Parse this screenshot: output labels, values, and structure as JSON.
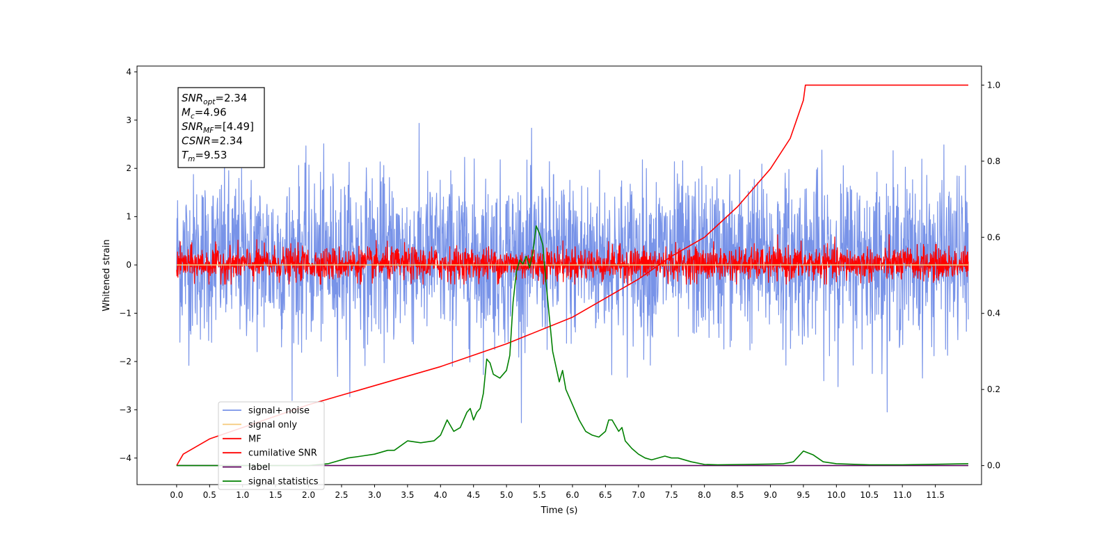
{
  "chart_data": {
    "type": "line",
    "title": "",
    "xlabel": "Time (s)",
    "ylabel": "Whitened strain",
    "xlim": [
      -0.6,
      12.2
    ],
    "ylim": [
      -4.55,
      4.12
    ],
    "y2lim": [
      -0.05,
      1.05
    ],
    "x_ticks": [
      0.0,
      0.5,
      1.0,
      1.5,
      2.0,
      2.5,
      3.0,
      3.5,
      4.0,
      4.5,
      5.0,
      5.5,
      6.0,
      6.5,
      7.0,
      7.5,
      8.0,
      8.5,
      9.0,
      9.5,
      10.0,
      10.5,
      11.0,
      11.5
    ],
    "x_tick_labels": [
      "0.0",
      "0.5",
      "1.0",
      "1.5",
      "2.0",
      "2.5",
      "3.0",
      "3.5",
      "4.0",
      "4.5",
      "5.0",
      "5.5",
      "6.0",
      "6.5",
      "7.0",
      "7.5",
      "8.0",
      "8.5",
      "9.0",
      "9.5",
      "10.0",
      "10.5",
      "11.0",
      "11.5"
    ],
    "y_ticks": [
      -4,
      -3,
      -2,
      -1,
      0,
      1,
      2,
      3,
      4
    ],
    "y_tick_labels": [
      "−4",
      "−3",
      "−2",
      "−1",
      "0",
      "1",
      "2",
      "3",
      "4"
    ],
    "y2_ticks": [
      0.0,
      0.2,
      0.4,
      0.6,
      0.8,
      1.0
    ],
    "y2_tick_labels": [
      "0.0",
      "0.2",
      "0.4",
      "0.6",
      "0.8",
      "1.0"
    ],
    "grid": false,
    "legend_position": "lower-left",
    "series": [
      {
        "name": "signal+ noise",
        "color": "#7893e8",
        "axis": "left",
        "kind": "noise",
        "x_range": [
          0,
          12.0
        ],
        "center": 0.15,
        "sigma": 0.85,
        "peak_max": 3.75,
        "peak_min": -3.85
      },
      {
        "name": "signal only",
        "color": "#f5c97a",
        "axis": "left",
        "kind": "flat",
        "x_range": [
          0,
          12.0
        ],
        "value": 0
      },
      {
        "name": "MF",
        "color": "#ff0000",
        "axis": "left",
        "kind": "noise",
        "x_range": [
          0,
          12.0
        ],
        "center": 0.02,
        "sigma": 0.17,
        "peak_max": 1.0,
        "peak_min": -0.4
      },
      {
        "name": "cumilative SNR",
        "color": "#ff0000",
        "axis": "right",
        "x": [
          0.0,
          0.1,
          0.5,
          1.0,
          2.0,
          3.0,
          4.0,
          5.0,
          6.0,
          7.0,
          7.5,
          8.0,
          8.5,
          9.0,
          9.3,
          9.5,
          9.53,
          12.0
        ],
        "y": [
          0.0,
          0.03,
          0.07,
          0.1,
          0.16,
          0.21,
          0.26,
          0.32,
          0.39,
          0.49,
          0.55,
          0.6,
          0.68,
          0.78,
          0.86,
          0.96,
          1.0,
          1.0
        ]
      },
      {
        "name": "label",
        "color": "#5c005c",
        "axis": "right",
        "x": [
          0.0,
          12.0
        ],
        "y": [
          0.0,
          0.0
        ]
      },
      {
        "name": "signal statistics",
        "color": "#008000",
        "axis": "right",
        "x": [
          0.0,
          0.5,
          1.0,
          1.5,
          2.0,
          2.3,
          2.6,
          2.8,
          3.0,
          3.2,
          3.3,
          3.5,
          3.7,
          3.9,
          4.0,
          4.1,
          4.2,
          4.3,
          4.4,
          4.45,
          4.5,
          4.55,
          4.6,
          4.65,
          4.7,
          4.75,
          4.8,
          4.9,
          5.0,
          5.05,
          5.1,
          5.15,
          5.2,
          5.25,
          5.3,
          5.35,
          5.4,
          5.45,
          5.5,
          5.55,
          5.6,
          5.7,
          5.8,
          5.85,
          5.9,
          6.0,
          6.1,
          6.2,
          6.3,
          6.4,
          6.5,
          6.55,
          6.6,
          6.7,
          6.75,
          6.8,
          6.9,
          7.0,
          7.1,
          7.2,
          7.4,
          7.5,
          7.6,
          7.8,
          8.0,
          8.2,
          8.6,
          9.0,
          9.2,
          9.35,
          9.5,
          9.65,
          9.8,
          10.0,
          10.5,
          11.0,
          12.0
        ],
        "y": [
          0.0,
          0.0,
          0.0,
          0.0,
          0.0,
          0.005,
          0.02,
          0.025,
          0.03,
          0.04,
          0.04,
          0.065,
          0.06,
          0.065,
          0.08,
          0.12,
          0.09,
          0.1,
          0.14,
          0.15,
          0.12,
          0.14,
          0.15,
          0.19,
          0.28,
          0.27,
          0.24,
          0.23,
          0.25,
          0.29,
          0.43,
          0.51,
          0.54,
          0.53,
          0.55,
          0.52,
          0.56,
          0.63,
          0.61,
          0.58,
          0.48,
          0.3,
          0.22,
          0.25,
          0.2,
          0.16,
          0.12,
          0.09,
          0.08,
          0.075,
          0.09,
          0.12,
          0.12,
          0.09,
          0.1,
          0.065,
          0.045,
          0.03,
          0.02,
          0.015,
          0.025,
          0.02,
          0.02,
          0.01,
          0.003,
          0.002,
          0.003,
          0.004,
          0.005,
          0.01,
          0.038,
          0.028,
          0.01,
          0.005,
          0.002,
          0.002,
          0.005
        ]
      }
    ],
    "annotation_lines": [
      {
        "label": "SNR",
        "sub": "opt",
        "value": "=2.34"
      },
      {
        "label": "M",
        "sub": "c",
        "value": "=4.96"
      },
      {
        "label": "SNR",
        "sub": "MF",
        "value": "=[4.49]"
      },
      {
        "label": "CSNR",
        "sub": "",
        "value": "=2.34"
      },
      {
        "label": "T",
        "sub": "m",
        "value": "=9.53"
      }
    ]
  }
}
